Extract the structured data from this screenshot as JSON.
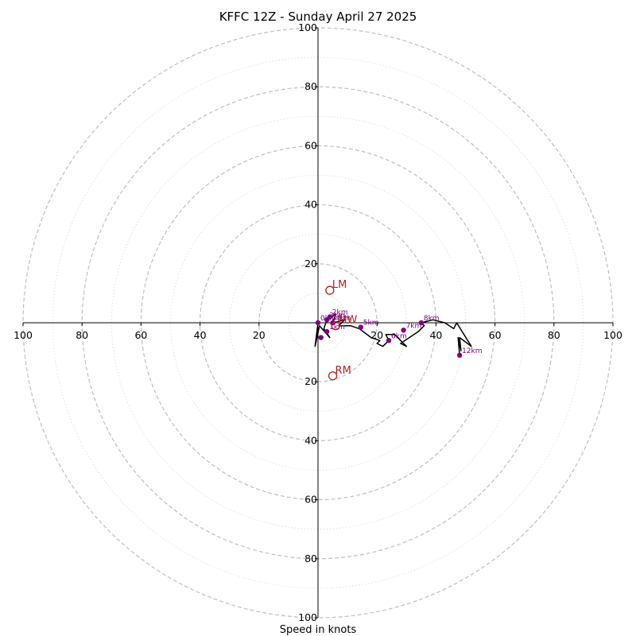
{
  "chart_data": {
    "type": "hodograph",
    "title": "KFFC 12Z - Sunday April 27 2025",
    "xlabel": "Speed in knots",
    "ring_max": 100,
    "ring_major_step": 20,
    "ring_minor_step": 10,
    "tick_labels": {
      "left": [
        "100",
        "80",
        "60",
        "40",
        "20"
      ],
      "right": [
        "20",
        "40",
        "60",
        "80",
        "100"
      ],
      "up": [
        "20",
        "40",
        "60",
        "80",
        "100"
      ],
      "down": [
        "20",
        "40",
        "60",
        "80",
        "100"
      ]
    },
    "trace": {
      "color": "#000000",
      "points": [
        [
          0,
          0
        ],
        [
          -1,
          -8
        ],
        [
          0.5,
          -1
        ],
        [
          4,
          -5
        ],
        [
          2,
          -2
        ],
        [
          3,
          1
        ],
        [
          6,
          3
        ],
        [
          5,
          0
        ],
        [
          9,
          1
        ],
        [
          7,
          -1
        ],
        [
          11,
          -1
        ],
        [
          14,
          -2
        ],
        [
          18,
          -5
        ],
        [
          21,
          -6
        ],
        [
          20,
          -7
        ],
        [
          22,
          -8
        ],
        [
          24,
          -6
        ],
        [
          23,
          -4
        ],
        [
          26,
          -4
        ],
        [
          30,
          -8
        ],
        [
          28,
          -7
        ],
        [
          34,
          -3
        ],
        [
          36,
          -1
        ],
        [
          35,
          0
        ],
        [
          39,
          1
        ],
        [
          43,
          0
        ],
        [
          46,
          -2
        ],
        [
          47,
          0
        ],
        [
          52,
          -8
        ],
        [
          48,
          -5
        ],
        [
          48.5,
          -9.5
        ],
        [
          47.5,
          -5
        ],
        [
          48,
          -11
        ]
      ]
    },
    "height_markers": [
      {
        "label": "0km",
        "u": 0,
        "v": 0
      },
      {
        "label": "1km",
        "u": 3,
        "v": -3
      },
      {
        "label": "2km",
        "u": 4,
        "v": 2
      },
      {
        "label": "3km",
        "u": 3,
        "v": 1
      },
      {
        "label": "4km",
        "u": 5,
        "v": 0
      },
      {
        "label": "5km",
        "u": 14.5,
        "v": -1.5
      },
      {
        "label": "6km",
        "u": 24,
        "v": -6
      },
      {
        "label": "7km",
        "u": 29,
        "v": -2.5
      },
      {
        "label": "8km",
        "u": 35,
        "v": 0
      },
      {
        "label": "12km",
        "u": 48,
        "v": -11
      },
      {
        "label": "",
        "u": 1,
        "v": -5
      }
    ],
    "motion_markers": [
      {
        "label": "LM",
        "u": 4,
        "v": 11
      },
      {
        "label": "RM",
        "u": 5,
        "v": -18
      },
      {
        "label": "MW",
        "u": 6,
        "v": -1
      }
    ],
    "colors": {
      "trace": "#000000",
      "height_marker": "#800080",
      "motion_marker": "#b22222",
      "ring_major": "#bfbfbf",
      "ring_minor": "#d3d3d3",
      "axis": "#000000"
    }
  }
}
